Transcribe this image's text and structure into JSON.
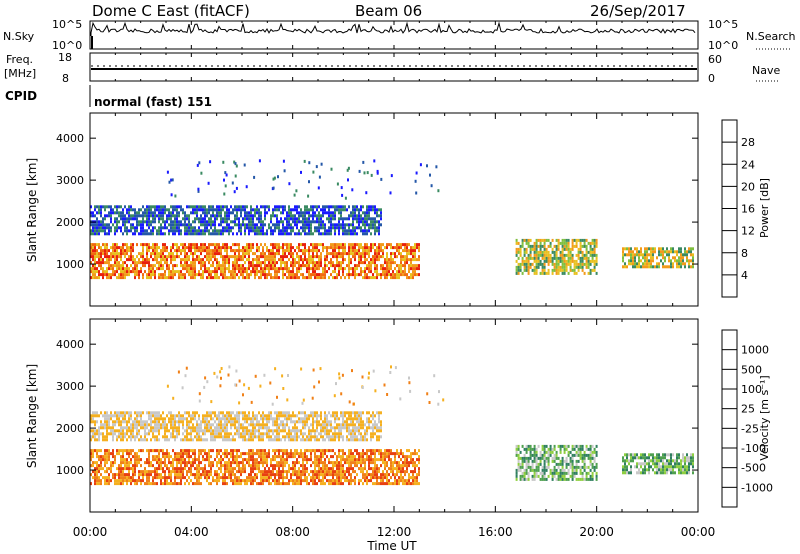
{
  "header": {
    "station": "Dome C East (fitACF)",
    "beam": "Beam 06",
    "date": "26/Sep/2017"
  },
  "noise_panel": {
    "left_label": "N.Sky",
    "left_ticks": [
      "10^5",
      "10^0"
    ],
    "right_label": "N.Search",
    "right_ticks": [
      "10^5",
      "10^0"
    ]
  },
  "freq_panel": {
    "left_label_top": "Freq.",
    "left_label_unit": "[MHz]",
    "left_ticks": [
      "18",
      "8"
    ],
    "right_label": "Nave",
    "right_ticks": [
      "60",
      "0"
    ]
  },
  "cpid_panel": {
    "label": "CPID",
    "program": "normal (fast) 151"
  },
  "x_axis": {
    "label": "Time UT",
    "ticks": [
      "00:00",
      "04:00",
      "08:00",
      "12:00",
      "16:00",
      "20:00",
      "00:00"
    ]
  },
  "power_panel": {
    "ylabel": "Slant Range [km]",
    "yticks": [
      "1000",
      "2000",
      "3000",
      "4000"
    ],
    "colorbar_label": "Power [dB]",
    "colorbar_ticks": [
      "4",
      "8",
      "12",
      "16",
      "20",
      "24",
      "28"
    ],
    "colors": [
      "#1a1aff",
      "#2457a8",
      "#3a8a62",
      "#7fbf3f",
      "#e8c020",
      "#f29a1a",
      "#f06a10",
      "#e8200c"
    ]
  },
  "velocity_panel": {
    "ylabel": "Slant Range [km]",
    "yticks": [
      "1000",
      "2000",
      "3000",
      "4000"
    ],
    "colorbar_label": "Velocity [m s⁻¹]",
    "colorbar_ticks": [
      "1000",
      "500",
      "100",
      "25",
      "-25",
      "-100",
      "-500",
      "-1000"
    ],
    "colors": [
      "#1f3fbf",
      "#2f7f5f",
      "#4fa04f",
      "#8fcf3f",
      "#c8c8c8",
      "#f5b020",
      "#f08018",
      "#e84010",
      "#e00000"
    ]
  },
  "chart_data": [
    {
      "type": "heatmap",
      "title": "Power",
      "xlabel": "Time UT",
      "ylabel": "Slant Range [km]",
      "xlim": [
        0,
        24
      ],
      "ylim": [
        0,
        4600
      ],
      "colorbar": "Power [dB]",
      "clim": [
        0,
        30
      ],
      "echo_regions": [
        {
          "t_start": 0.0,
          "t_end": 13.0,
          "range_km": [
            700,
            1500
          ],
          "dominant_power_db": [
            12,
            28
          ]
        },
        {
          "t_start": 0.0,
          "t_end": 11.5,
          "range_km": [
            1700,
            2400
          ],
          "dominant_power_db": [
            4,
            12
          ]
        },
        {
          "t_start": 16.8,
          "t_end": 20.0,
          "range_km": [
            800,
            1600
          ],
          "dominant_power_db": [
            12,
            22
          ]
        },
        {
          "t_start": 21.0,
          "t_end": 23.8,
          "range_km": [
            900,
            1400
          ],
          "dominant_power_db": [
            10,
            20
          ]
        }
      ]
    },
    {
      "type": "heatmap",
      "title": "Velocity",
      "xlabel": "Time UT",
      "ylabel": "Slant Range [km]",
      "xlim": [
        0,
        24
      ],
      "ylim": [
        0,
        4600
      ],
      "colorbar": "Velocity [m s-1]",
      "clim": [
        -1000,
        1000
      ],
      "echo_regions": [
        {
          "t_start": 0.0,
          "t_end": 13.0,
          "range_km": [
            700,
            1500
          ],
          "dominant_velocity": [
            -500,
            -100
          ]
        },
        {
          "t_start": 0.0,
          "t_end": 11.5,
          "range_km": [
            1700,
            2400
          ],
          "dominant_velocity": [
            -25,
            25
          ]
        },
        {
          "t_start": 16.8,
          "t_end": 20.0,
          "range_km": [
            800,
            1600
          ],
          "dominant_velocity": [
            25,
            100
          ]
        },
        {
          "t_start": 21.0,
          "t_end": 23.8,
          "range_km": [
            900,
            1400
          ],
          "dominant_velocity": [
            25,
            500
          ]
        }
      ]
    }
  ]
}
